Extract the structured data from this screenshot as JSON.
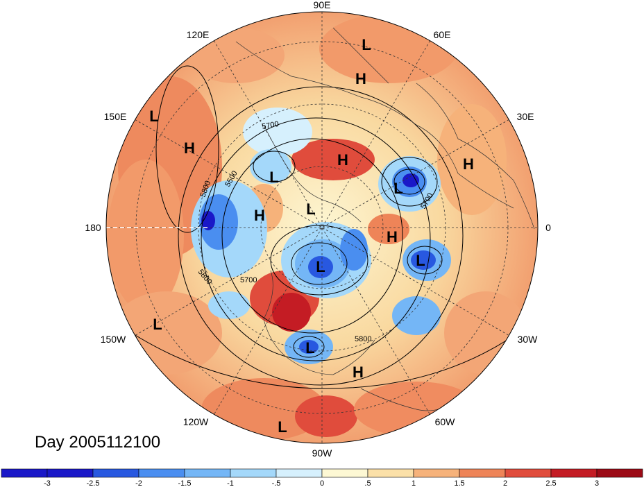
{
  "title": "Day 2005112100",
  "longitude_labels": [
    "90E",
    "60E",
    "30E",
    "0",
    "30W",
    "60W",
    "90W",
    "120W",
    "150W",
    "180",
    "150E",
    "120E"
  ],
  "pressure_systems": [
    "L",
    "H",
    "L",
    "H",
    "H",
    "L",
    "H",
    "L",
    "L",
    "H",
    "L",
    "L",
    "H",
    "L",
    "L",
    "H",
    "L",
    "L"
  ],
  "contour_labels": [
    "5700",
    "5500",
    "5800",
    "5700",
    "5800",
    "5700",
    "5800"
  ],
  "colorbar": {
    "tick_labels": [
      "-3",
      "-2.5",
      "-2",
      "-1.5",
      "-1",
      "-.5",
      "0",
      ".5",
      "1",
      "1.5",
      "2",
      "2.5",
      "3"
    ],
    "colors": [
      "#1a18c8",
      "#2858e0",
      "#4a8ef0",
      "#74b6f6",
      "#a4d8fa",
      "#d6f0fd",
      "#fdf8d4",
      "#fbe0a8",
      "#f6b27a",
      "#ee8458",
      "#e04c3c",
      "#c41c24",
      "#9c0a16"
    ]
  }
}
